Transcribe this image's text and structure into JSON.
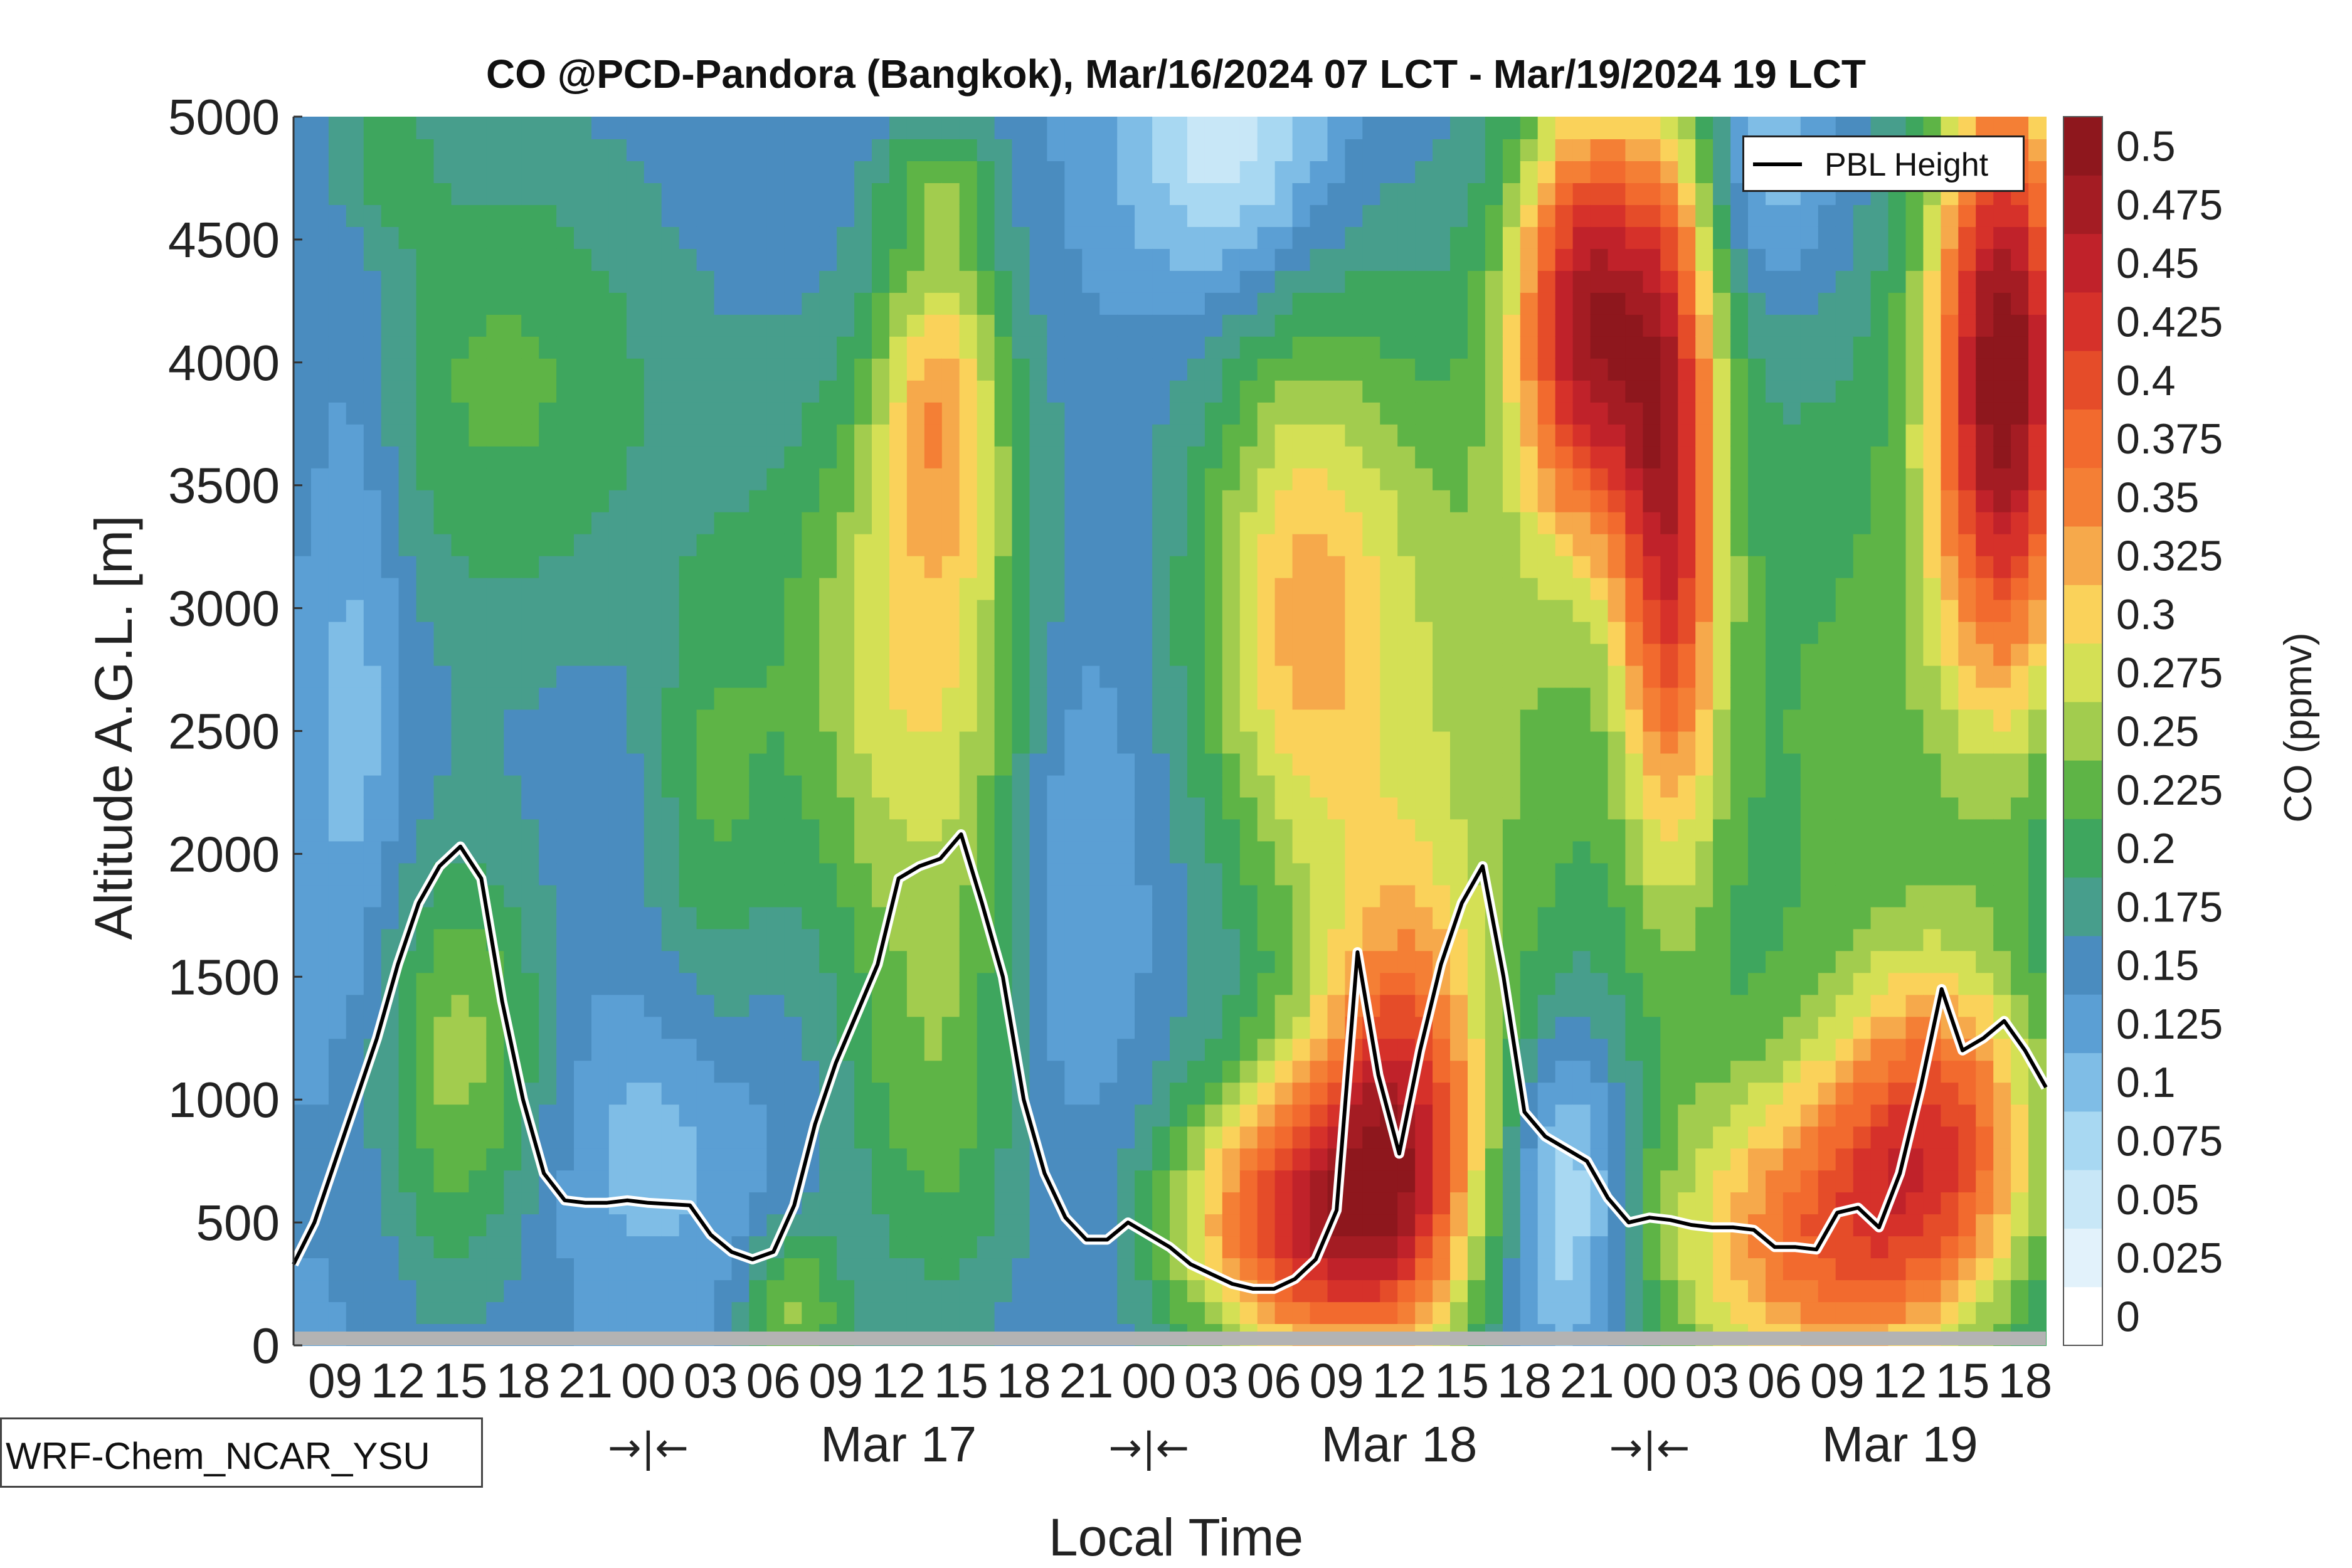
{
  "chart_data": {
    "type": "heatmap",
    "title": "CO @PCD-Pandora (Bangkok), Mar/16/2024 07 LCT - Mar/19/2024 19 LCT",
    "xlabel": "Local Time",
    "ylabel": "Altitude A.G.L. [m]",
    "colorbar_label": "CO (ppmv)",
    "model_label": "WRF-Chem_NCAR_YSU",
    "legend": [
      {
        "name": "PBL Height",
        "color": "#000000"
      }
    ],
    "legend_position": "top-right",
    "ylim": [
      0,
      5000
    ],
    "yticks": [
      0,
      500,
      1000,
      1500,
      2000,
      2500,
      3000,
      3500,
      4000,
      4500,
      5000
    ],
    "xlim_hours": [
      7,
      91
    ],
    "hour_ticks": [
      "09",
      "12",
      "15",
      "18",
      "21",
      "00",
      "03",
      "06",
      "09",
      "12",
      "15",
      "18",
      "21",
      "00",
      "03",
      "06",
      "09",
      "12",
      "15",
      "18",
      "21",
      "00",
      "03",
      "06",
      "09",
      "12",
      "15",
      "18"
    ],
    "day_labels": [
      "Mar 17",
      "Mar 18",
      "Mar 19"
    ],
    "day_separator": "→|←",
    "colorbar_levels": [
      0,
      0.025,
      0.05,
      0.075,
      0.1,
      0.125,
      0.15,
      0.175,
      0.2,
      0.225,
      0.25,
      0.275,
      0.3,
      0.325,
      0.35,
      0.375,
      0.4,
      0.425,
      0.45,
      0.475,
      0.5
    ],
    "colorbar_tick_labels": [
      "0",
      "0.025",
      "0.05",
      "0.075",
      "0.1",
      "0.125",
      "0.15",
      "0.175",
      "0.2",
      "0.225",
      "0.25",
      "0.275",
      "0.3",
      "0.325",
      "0.35",
      "0.375",
      "0.4",
      "0.425",
      "0.45",
      "0.475",
      "0.5"
    ],
    "colors": [
      "#ffffff",
      "#e2f2fb",
      "#c8e7f7",
      "#a8d8f2",
      "#7fbde6",
      "#5b9fd4",
      "#4a8cbf",
      "#479e8c",
      "#3ea65e",
      "#5eb446",
      "#a2cc4e",
      "#d4e055",
      "#fad25a",
      "#f6a94b",
      "#f47f35",
      "#f26a2e",
      "#e54c29",
      "#d6312a",
      "#c0222a",
      "#a41c23",
      "#8e171d"
    ],
    "pbl_height": {
      "hours": [
        7,
        8,
        9,
        10,
        11,
        12,
        13,
        14,
        15,
        16,
        17,
        18,
        19,
        20,
        21,
        22,
        23,
        24,
        25,
        26,
        27,
        28,
        29,
        30,
        31,
        32,
        33,
        34,
        35,
        36,
        37,
        38,
        39,
        40,
        41,
        42,
        43,
        44,
        45,
        46,
        47,
        48,
        49,
        50,
        51,
        52,
        53,
        54,
        55,
        56,
        57,
        58,
        59,
        60,
        61,
        62,
        63,
        64,
        65,
        66,
        67,
        68,
        69,
        70,
        71,
        72,
        73,
        74,
        75,
        76,
        77,
        78,
        79,
        80,
        81,
        82,
        83,
        84,
        85,
        86,
        87,
        88,
        89,
        90,
        91
      ],
      "values": [
        330,
        500,
        750,
        1000,
        1250,
        1550,
        1800,
        1950,
        2030,
        1900,
        1400,
        1000,
        700,
        590,
        580,
        580,
        590,
        580,
        575,
        570,
        450,
        380,
        350,
        380,
        570,
        900,
        1150,
        1350,
        1550,
        1900,
        1950,
        1980,
        2080,
        1800,
        1500,
        1000,
        700,
        520,
        430,
        430,
        500,
        450,
        400,
        330,
        290,
        250,
        230,
        230,
        270,
        350,
        550,
        1600,
        1100,
        780,
        1200,
        1550,
        1800,
        1950,
        1500,
        950,
        850,
        800,
        750,
        600,
        500,
        520,
        510,
        490,
        480,
        480,
        470,
        400,
        400,
        390,
        540,
        560,
        480,
        700,
        1050,
        1450,
        1200,
        1250,
        1320,
        1200,
        1050
      ]
    },
    "grid": false
  }
}
